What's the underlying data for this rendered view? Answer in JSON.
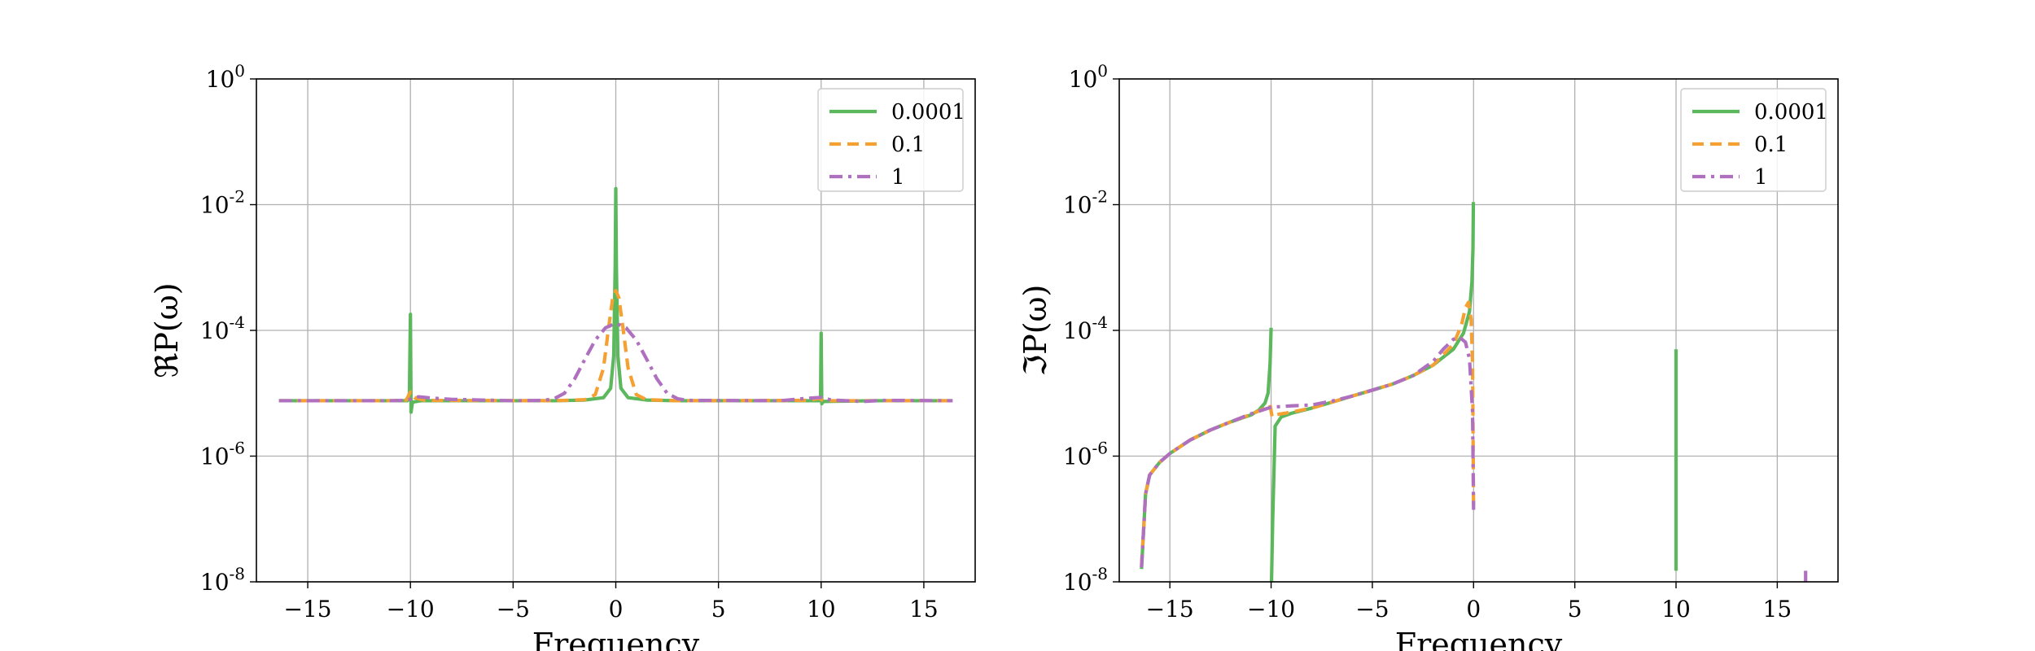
{
  "chart_data": [
    {
      "type": "line",
      "title": "",
      "xlabel": "Frequency",
      "ylabel": "ℜP(ω)",
      "yscale": "log",
      "xlim": [
        -17.5,
        17.5
      ],
      "ylim": [
        1e-08,
        1
      ],
      "xticks": [
        -15,
        -10,
        -5,
        0,
        5,
        10,
        15
      ],
      "xtick_labels": [
        "−15",
        "−10",
        "−5",
        "0",
        "5",
        "10",
        "15"
      ],
      "yticks": [
        1e-08,
        1e-06,
        0.0001,
        0.01,
        1
      ],
      "ytick_labels": [
        [
          "10",
          "-8"
        ],
        [
          "10",
          "-6"
        ],
        [
          "10",
          "-4"
        ],
        [
          "10",
          "-2"
        ],
        [
          "10",
          "0"
        ]
      ],
      "grid": true,
      "legend_position": "top-right",
      "series": [
        {
          "name": "0.0001",
          "color": "#5cb85c",
          "dash": "solid",
          "points": [
            [
              -16.4,
              7.6e-06
            ],
            [
              -11,
              7.6e-06
            ],
            [
              -10.15,
              7.6e-06
            ],
            [
              -10.05,
              1e-05
            ],
            [
              -10.0,
              0.00018
            ],
            [
              -9.97,
              5e-06
            ],
            [
              -9.9,
              7.2e-06
            ],
            [
              -9.5,
              7.6e-06
            ],
            [
              -3,
              7.6e-06
            ],
            [
              -1.5,
              7.8e-06
            ],
            [
              -0.6,
              8.5e-06
            ],
            [
              -0.25,
              1.2e-05
            ],
            [
              -0.1,
              4e-05
            ],
            [
              -0.03,
              0.001
            ],
            [
              0,
              0.018
            ],
            [
              0.03,
              0.001
            ],
            [
              0.1,
              4e-05
            ],
            [
              0.25,
              1.2e-05
            ],
            [
              0.6,
              8.5e-06
            ],
            [
              1.5,
              7.8e-06
            ],
            [
              3,
              7.6e-06
            ],
            [
              9.9,
              7.6e-06
            ],
            [
              9.97,
              8e-06
            ],
            [
              10.0,
              9e-05
            ],
            [
              10.03,
              6.8e-06
            ],
            [
              10.1,
              7.4e-06
            ],
            [
              12.5,
              7.6e-06
            ],
            [
              16.4,
              7.6e-06
            ]
          ]
        },
        {
          "name": "0.1",
          "color": "#f5a033",
          "dash": "dashed",
          "points": [
            [
              -16.4,
              7.6e-06
            ],
            [
              -11,
              7.6e-06
            ],
            [
              -10.2,
              7.8e-06
            ],
            [
              -10.0,
              1.05e-05
            ],
            [
              -9.8,
              8.5e-06
            ],
            [
              -9.3,
              7.7e-06
            ],
            [
              -3,
              7.6e-06
            ],
            [
              -1.5,
              7.9e-06
            ],
            [
              -1.0,
              9.5e-06
            ],
            [
              -0.6,
              2.5e-05
            ],
            [
              -0.35,
              0.00011
            ],
            [
              -0.15,
              0.00033
            ],
            [
              0,
              0.00043
            ],
            [
              0.15,
              0.00033
            ],
            [
              0.35,
              0.00011
            ],
            [
              0.6,
              2.5e-05
            ],
            [
              1.0,
              9.5e-06
            ],
            [
              1.5,
              7.9e-06
            ],
            [
              3,
              7.6e-06
            ],
            [
              9.4,
              7.7e-06
            ],
            [
              9.9,
              8.3e-06
            ],
            [
              10.1,
              7.6e-06
            ],
            [
              16.4,
              7.6e-06
            ]
          ]
        },
        {
          "name": "1",
          "color": "#b070c0",
          "dash": "dashdot",
          "points": [
            [
              -16.4,
              7.6e-06
            ],
            [
              -11,
              7.6e-06
            ],
            [
              -10.2,
              7.7e-06
            ],
            [
              -9.6,
              8.8e-06
            ],
            [
              -9.0,
              8.4e-06
            ],
            [
              -8.0,
              8e-06
            ],
            [
              -5,
              7.6e-06
            ],
            [
              -3.5,
              7.7e-06
            ],
            [
              -3.0,
              8.2e-06
            ],
            [
              -2.5,
              1e-05
            ],
            [
              -2.0,
              1.7e-05
            ],
            [
              -1.5,
              3.5e-05
            ],
            [
              -1.0,
              7e-05
            ],
            [
              -0.5,
              0.00011
            ],
            [
              0,
              0.00013
            ],
            [
              0.5,
              0.00011
            ],
            [
              1.0,
              7e-05
            ],
            [
              1.5,
              3.5e-05
            ],
            [
              2.0,
              1.7e-05
            ],
            [
              2.5,
              1e-05
            ],
            [
              3.0,
              8.2e-06
            ],
            [
              3.5,
              7.7e-06
            ],
            [
              8,
              7.6e-06
            ],
            [
              9.3,
              8.3e-06
            ],
            [
              10.0,
              8.6e-06
            ],
            [
              10.5,
              7.8e-06
            ],
            [
              12,
              7.4e-06
            ],
            [
              13,
              7.7e-06
            ],
            [
              16.4,
              7.6e-06
            ]
          ]
        }
      ]
    },
    {
      "type": "line",
      "title": "",
      "xlabel": "Frequency",
      "ylabel": "ℑP(ω)",
      "yscale": "log",
      "xlim": [
        -17.5,
        18.0
      ],
      "ylim": [
        1e-08,
        1
      ],
      "xticks": [
        -15,
        -10,
        -5,
        0,
        5,
        10,
        15
      ],
      "xtick_labels": [
        "−15",
        "−10",
        "−5",
        "0",
        "5",
        "10",
        "15"
      ],
      "yticks": [
        1e-08,
        1e-06,
        0.0001,
        0.01,
        1
      ],
      "ytick_labels": [
        [
          "10",
          "-8"
        ],
        [
          "10",
          "-6"
        ],
        [
          "10",
          "-4"
        ],
        [
          "10",
          "-2"
        ],
        [
          "10",
          "0"
        ]
      ],
      "grid": true,
      "legend_position": "top-right",
      "series": [
        {
          "name": "0.0001",
          "color": "#5cb85c",
          "dash": "solid",
          "segments": [
            [
              [
                -16.4,
                1.6e-08
              ],
              [
                -16.2,
                2.5e-07
              ],
              [
                -16.0,
                5e-07
              ],
              [
                -15.5,
                8e-07
              ],
              [
                -15.0,
                1.1e-06
              ],
              [
                -14.0,
                1.8e-06
              ],
              [
                -13.0,
                2.6e-06
              ],
              [
                -12.0,
                3.5e-06
              ],
              [
                -11.0,
                4.5e-06
              ],
              [
                -10.6,
                5.4e-06
              ],
              [
                -10.3,
                7e-06
              ],
              [
                -10.15,
                1e-05
              ],
              [
                -10.05,
                3e-05
              ],
              [
                -10.0,
                0.00011
              ]
            ],
            [
              [
                -9.98,
                1e-08
              ],
              [
                -9.92,
                1e-07
              ],
              [
                -9.8,
                3e-06
              ],
              [
                -9.5,
                4.2e-06
              ],
              [
                -9.0,
                4.8e-06
              ],
              [
                -8.0,
                5.8e-06
              ],
              [
                -7.0,
                7.2e-06
              ],
              [
                -6.0,
                9e-06
              ],
              [
                -5.0,
                1.12e-05
              ],
              [
                -4.0,
                1.4e-05
              ],
              [
                -3.0,
                1.9e-05
              ],
              [
                -2.0,
                2.8e-05
              ],
              [
                -1.0,
                5e-05
              ],
              [
                -0.5,
                9e-05
              ],
              [
                -0.2,
                0.0002
              ],
              [
                -0.08,
                0.0006
              ],
              [
                -0.03,
                0.002
              ],
              [
                -0.01,
                0.011
              ]
            ],
            [
              [
                10.0,
                1.5e-08
              ],
              [
                10.0,
                5e-05
              ]
            ]
          ]
        },
        {
          "name": "0.1",
          "color": "#f5a033",
          "dash": "dashed",
          "segments": [
            [
              [
                -16.4,
                1.8e-08
              ],
              [
                -16.2,
                2.5e-07
              ],
              [
                -16.0,
                5e-07
              ],
              [
                -15.5,
                8e-07
              ],
              [
                -15.0,
                1.1e-06
              ],
              [
                -14.0,
                1.8e-06
              ],
              [
                -13.0,
                2.6e-06
              ],
              [
                -12.0,
                3.5e-06
              ],
              [
                -11.0,
                4.6e-06
              ],
              [
                -10.3,
                5.8e-06
              ],
              [
                -10.05,
                6.5e-06
              ],
              [
                -9.95,
                4.2e-06
              ],
              [
                -9.7,
                4.6e-06
              ],
              [
                -9.0,
                5e-06
              ],
              [
                -8.0,
                5.8e-06
              ],
              [
                -7.0,
                7.2e-06
              ],
              [
                -6.0,
                9e-06
              ],
              [
                -5.0,
                1.12e-05
              ],
              [
                -4.0,
                1.4e-05
              ],
              [
                -3.0,
                1.9e-05
              ],
              [
                -2.0,
                2.8e-05
              ],
              [
                -1.0,
                6e-05
              ],
              [
                -0.6,
                0.00012
              ],
              [
                -0.4,
                0.00023
              ],
              [
                -0.25,
                0.00028
              ],
              [
                -0.12,
                0.00015
              ],
              [
                -0.05,
                3e-05
              ],
              [
                0,
                1.5e-07
              ]
            ]
          ]
        },
        {
          "name": "1",
          "color": "#b070c0",
          "dash": "dashdot",
          "segments": [
            [
              [
                -16.4,
                1.7e-08
              ],
              [
                -16.2,
                2.5e-07
              ],
              [
                -16.0,
                5e-07
              ],
              [
                -15.5,
                8e-07
              ],
              [
                -15.0,
                1.1e-06
              ],
              [
                -14.0,
                1.8e-06
              ],
              [
                -13.0,
                2.6e-06
              ],
              [
                -12.0,
                3.5e-06
              ],
              [
                -11.0,
                4.7e-06
              ],
              [
                -10.0,
                6e-06
              ],
              [
                -9.0,
                6.3e-06
              ],
              [
                -8.0,
                6.5e-06
              ],
              [
                -7.0,
                7.5e-06
              ],
              [
                -6.0,
                9e-06
              ],
              [
                -5.0,
                1.12e-05
              ],
              [
                -4.0,
                1.4e-05
              ],
              [
                -3.0,
                1.9e-05
              ],
              [
                -2.0,
                3.2e-05
              ],
              [
                -1.5,
                5e-05
              ],
              [
                -1.0,
                7.2e-05
              ],
              [
                -0.7,
                7.8e-05
              ],
              [
                -0.4,
                6.5e-05
              ],
              [
                -0.2,
                3.5e-05
              ],
              [
                -0.05,
                5e-06
              ],
              [
                0,
                1.4e-07
              ]
            ],
            [
              [
                16.4,
                1e-08
              ],
              [
                16.4,
                1.5e-08
              ]
            ]
          ]
        }
      ]
    }
  ]
}
